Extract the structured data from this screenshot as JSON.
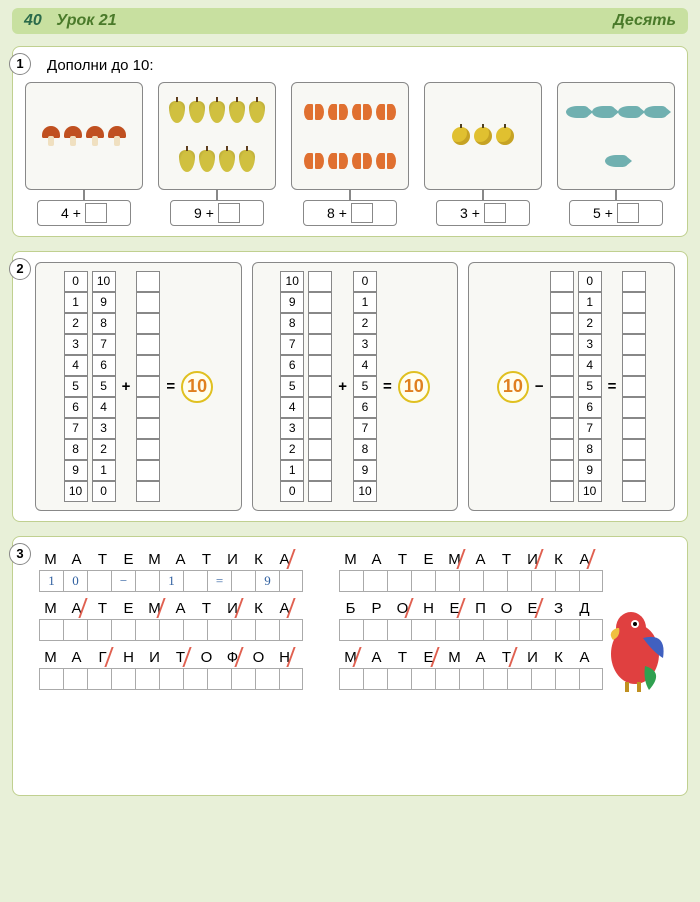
{
  "header": {
    "page_num": "40",
    "lesson": "Урок 21",
    "topic": "Десять"
  },
  "ex1": {
    "num": "1",
    "title": "Дополни до 10:",
    "cards": [
      {
        "icon": "mushroom",
        "count": 4,
        "given": "4"
      },
      {
        "icon": "pear",
        "count": 9,
        "given": "9"
      },
      {
        "icon": "butterfly",
        "count": 8,
        "given": "8"
      },
      {
        "icon": "apple",
        "count": 3,
        "given": "3"
      },
      {
        "icon": "fish",
        "count": 5,
        "given": "5"
      }
    ],
    "plus": "+"
  },
  "ex2": {
    "num": "2",
    "rows": [
      "0",
      "1",
      "2",
      "3",
      "4",
      "5",
      "6",
      "7",
      "8",
      "9",
      "10"
    ],
    "rows_desc": [
      "10",
      "9",
      "8",
      "7",
      "6",
      "5",
      "4",
      "3",
      "2",
      "1",
      "0"
    ],
    "plus": "+",
    "minus": "−",
    "eq": "=",
    "ten": "10"
  },
  "ex3": {
    "num": "3",
    "blocks": [
      {
        "word": "МАТЕМАТИКА",
        "strikes": [
          9
        ],
        "answer": "10 − 1 = 9"
      },
      {
        "word": "МАТЕМАТИКА",
        "strikes": [
          4,
          7,
          9
        ],
        "answer": ""
      },
      {
        "word": "МАТЕМАТИКА",
        "strikes": [
          1,
          4,
          7,
          9
        ],
        "answer": ""
      },
      {
        "word": "БРОНЕПОЕЗД",
        "strikes": [
          2,
          4,
          7
        ],
        "answer": ""
      },
      {
        "word": "МАГНИТОФОН",
        "strikes": [
          2,
          5,
          7,
          9
        ],
        "answer": ""
      },
      {
        "word": "МАТЕМАТИКА",
        "strikes": [
          0,
          3,
          6
        ],
        "answer": ""
      }
    ]
  },
  "colors": {
    "page_bg": "#e8f0d8",
    "header_bg": "#c8e0a0",
    "header_text": "#4a7a2a",
    "card_border": "#888888",
    "ten_ring": "#e0c020",
    "ten_text": "#e08020",
    "strike": "#e06050",
    "handwriting": "#3060a0"
  }
}
